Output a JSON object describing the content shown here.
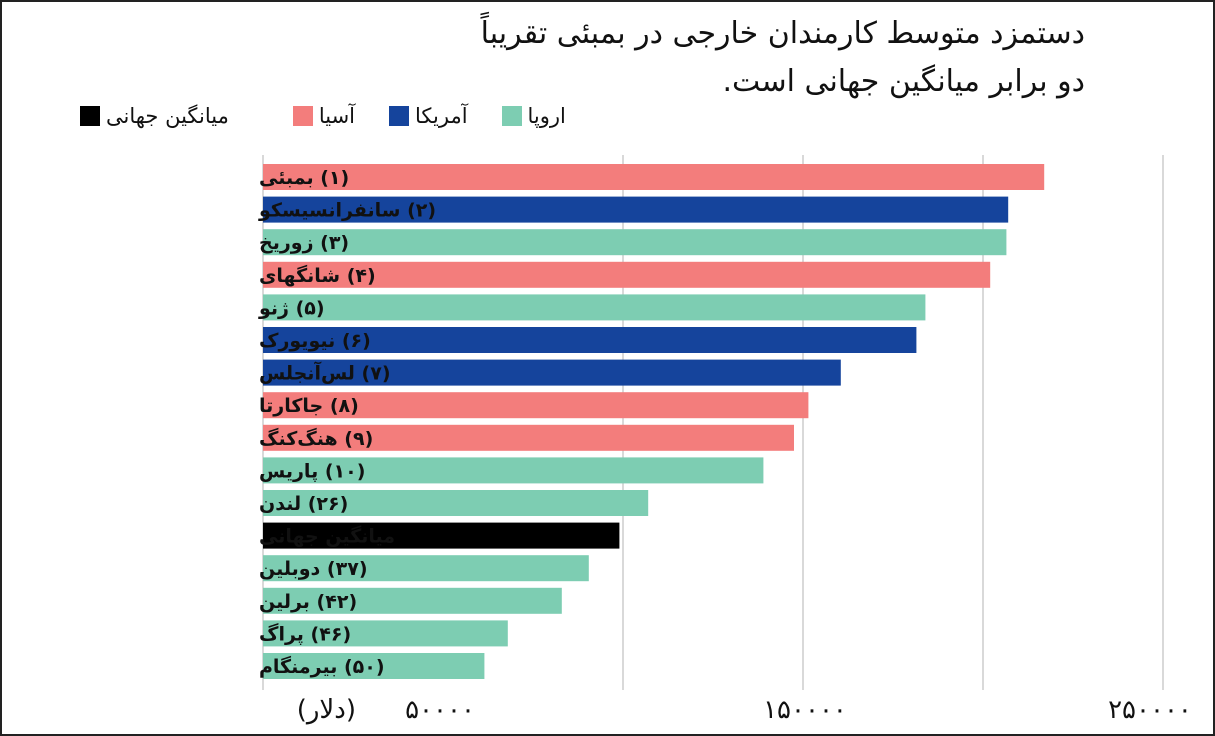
{
  "chart_data": {
    "type": "bar",
    "orientation": "horizontal",
    "title": "دستمزد متوسط کارمندان خارجی در بمبئی تقریباً دو برابر میانگین جهانی است.",
    "title_lines": [
      "دستمزد متوسط کارمندان خارجی در بمبئی تقریباً",
      "دو برابر میانگین جهانی است."
    ],
    "legend": [
      {
        "name": "اروپا",
        "color": "#7dcdb2"
      },
      {
        "name": "آمریکا",
        "color": "#15449c"
      },
      {
        "name": "آسیا",
        "color": "#f37d7c"
      },
      {
        "name": "میانگین جهانی",
        "color": "#000000"
      }
    ],
    "categories": [
      "(۱) بمبئی",
      "(۲) سانفرانسیسکو",
      "(۳) زوریخ",
      "(۴) شانگهای",
      "(۵) ژنو",
      "(۶) نیویورک",
      "(۷) لس‌آنجلس",
      "(۸) جاکارتا",
      "(۹) هنگ‌کنگ",
      "(۱۰) پاریس",
      "(۲۶) لندن",
      "میانگین جهانی",
      "(۳۷) دوبلین",
      "(۴۲) برلین",
      "(۴۶) پراگ",
      "(۵۰) بیرمنگام"
    ],
    "values": [
      217000,
      207000,
      206500,
      202000,
      184000,
      181500,
      160500,
      151500,
      147500,
      139000,
      107000,
      99000,
      90500,
      83000,
      68000,
      61500
    ],
    "groups": [
      "آسیا",
      "آمریکا",
      "اروپا",
      "آسیا",
      "اروپا",
      "آمریکا",
      "آمریکا",
      "آسیا",
      "آسیا",
      "اروپا",
      "اروپا",
      "میانگین جهانی",
      "اروپا",
      "اروپا",
      "اروپا",
      "اروپا"
    ],
    "xlim": [
      0,
      250000
    ],
    "x_gridlines": [
      100000,
      150000,
      200000,
      250000
    ],
    "x_tick_labels": [
      {
        "value": 50000,
        "label": "۵۰۰۰۰"
      },
      {
        "value": 150000,
        "label": "۱۵۰۰۰۰"
      },
      {
        "value": 250000,
        "label": "۲۵۰۰۰۰"
      }
    ],
    "xlabel": "(دلار)",
    "grid": true,
    "legend_position": "top"
  }
}
